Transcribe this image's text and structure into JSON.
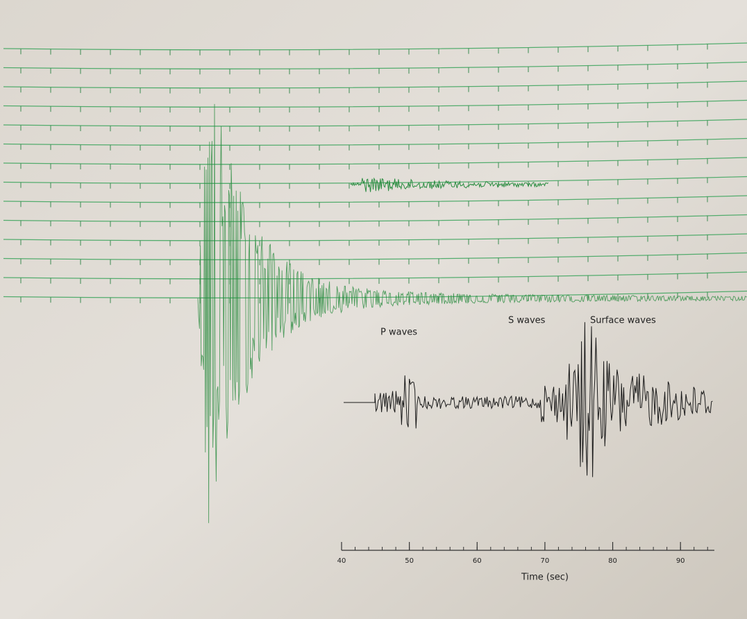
{
  "annotations": {
    "p_waves": "P waves",
    "s_waves": "S waves",
    "surface_waves": "Surface waves"
  },
  "time_axis": {
    "label": "Time (sec)",
    "xlim": [
      40,
      95
    ],
    "xticks": [
      40,
      50,
      60,
      70,
      80,
      90
    ]
  }
}
